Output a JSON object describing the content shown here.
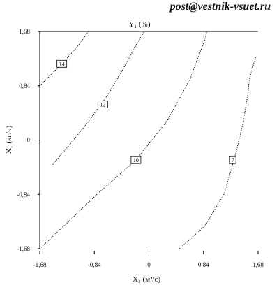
{
  "header": {
    "email": "post@vestnik-vsuet.ru"
  },
  "chart_data": {
    "type": "line",
    "title": "Y₁ (%)",
    "xlabel": "X₂ (м³/с)",
    "ylabel": "X₁ (кг/ч)",
    "xlim": [
      -1.68,
      1.68
    ],
    "ylim": [
      -1.68,
      1.68
    ],
    "x_ticks": [
      {
        "value": -1.68,
        "label": "-1,68"
      },
      {
        "value": -0.84,
        "label": "-0,84"
      },
      {
        "value": 0,
        "label": "0"
      },
      {
        "value": 0.84,
        "label": "0,84"
      },
      {
        "value": 1.68,
        "label": "1,68"
      }
    ],
    "y_ticks": [
      {
        "value": 1.68,
        "label": "1,68"
      },
      {
        "value": 0.84,
        "label": "0,84"
      },
      {
        "value": 0,
        "label": "0"
      },
      {
        "value": -0.84,
        "label": "-0,84"
      },
      {
        "value": -1.68,
        "label": "-1,68"
      }
    ],
    "grid": false,
    "series": [
      {
        "label": "14",
        "label_at": {
          "x": -1.34,
          "y": 1.18
        },
        "points": [
          [
            -1.68,
            0.84
          ],
          [
            -1.45,
            1.07
          ],
          [
            -1.25,
            1.28
          ],
          [
            -1.08,
            1.47
          ],
          [
            -0.93,
            1.68
          ]
        ]
      },
      {
        "label": "12",
        "label_at": {
          "x": -0.71,
          "y": 0.55
        },
        "points": [
          [
            -1.48,
            -0.38
          ],
          [
            -1.22,
            -0.07
          ],
          [
            -0.92,
            0.3
          ],
          [
            -0.62,
            0.72
          ],
          [
            -0.37,
            1.15
          ],
          [
            -0.18,
            1.5
          ],
          [
            -0.07,
            1.68
          ]
        ]
      },
      {
        "label": "10",
        "label_at": {
          "x": -0.2,
          "y": -0.31
        },
        "points": [
          [
            -1.68,
            -1.68
          ],
          [
            -1.25,
            -1.27
          ],
          [
            -0.79,
            -0.83
          ],
          [
            -0.2,
            -0.31
          ],
          [
            0.29,
            0.31
          ],
          [
            0.64,
            0.96
          ],
          [
            0.86,
            1.55
          ],
          [
            0.89,
            1.68
          ]
        ]
      },
      {
        "label": "7",
        "label_at": {
          "x": 1.29,
          "y": -0.31
        },
        "points": [
          [
            0.47,
            -1.68
          ],
          [
            0.86,
            -1.33
          ],
          [
            1.16,
            -0.83
          ],
          [
            1.34,
            -0.19
          ],
          [
            1.45,
            0.27
          ],
          [
            1.51,
            0.64
          ],
          [
            1.55,
            0.96
          ],
          [
            1.64,
            1.28
          ]
        ]
      }
    ]
  }
}
